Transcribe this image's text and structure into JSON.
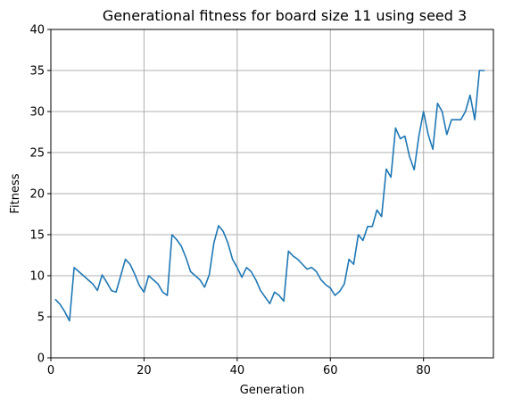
{
  "chart_data": {
    "type": "line",
    "title": "Generational fitness for board size 11 using seed 3",
    "xlabel": "Generation",
    "ylabel": "Fitness",
    "xlim": [
      0,
      95
    ],
    "ylim": [
      0,
      40
    ],
    "xticks": [
      0,
      20,
      40,
      60,
      80
    ],
    "yticks": [
      0,
      5,
      10,
      15,
      20,
      25,
      30,
      35,
      40
    ],
    "grid": true,
    "series": [
      {
        "color": "#1f77b4",
        "x": [
          1,
          2,
          3,
          4,
          5,
          6,
          7,
          8,
          9,
          10,
          11,
          12,
          13,
          14,
          15,
          16,
          17,
          18,
          19,
          20,
          21,
          22,
          23,
          24,
          25,
          26,
          27,
          28,
          29,
          30,
          31,
          32,
          33,
          34,
          35,
          36,
          37,
          38,
          39,
          40,
          41,
          42,
          43,
          44,
          45,
          46,
          47,
          48,
          49,
          50,
          51,
          52,
          53,
          54,
          55,
          56,
          57,
          58,
          59,
          60,
          61,
          62,
          63,
          64,
          65,
          66,
          67,
          68,
          69,
          70,
          71,
          72,
          73,
          74,
          75,
          76,
          77,
          78,
          79,
          80,
          81,
          82,
          83,
          84,
          85,
          86,
          87,
          88,
          89,
          90,
          91,
          92,
          93
        ],
        "values": [
          7.1,
          6.5,
          5.6,
          4.5,
          11.0,
          10.5,
          10.0,
          9.5,
          9.0,
          8.2,
          10.1,
          9.2,
          8.2,
          8.0,
          10.0,
          12.0,
          11.4,
          10.2,
          8.8,
          8.0,
          10.0,
          9.5,
          9.0,
          8.0,
          7.6,
          15.0,
          14.4,
          13.6,
          12.2,
          10.5,
          10.0,
          9.5,
          8.6,
          10.1,
          14.0,
          16.1,
          15.4,
          14.0,
          12.0,
          11.0,
          9.8,
          11.0,
          10.5,
          9.5,
          8.2,
          7.4,
          6.6,
          8.0,
          7.6,
          6.9,
          13.0,
          12.4,
          12.0,
          11.4,
          10.8,
          11.0,
          10.5,
          9.5,
          8.9,
          8.5,
          7.6,
          8.1,
          9.0,
          12.0,
          11.4,
          15.0,
          14.3,
          16.0,
          16.0,
          18.0,
          17.2,
          23.0,
          22.0,
          28.0,
          26.7,
          27.0,
          24.5,
          22.9,
          27.0,
          30.0,
          27.2,
          25.4,
          31.0,
          30.0,
          27.2,
          29.0,
          29.0,
          29.0,
          30.0,
          32.0,
          29.0,
          35.0,
          35.0
        ]
      }
    ]
  }
}
